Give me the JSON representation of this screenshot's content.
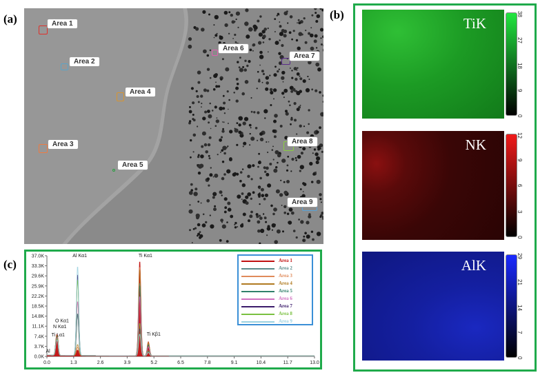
{
  "panels": {
    "a": "(a)",
    "b": "(b)",
    "c": "(c)"
  },
  "sem_areas": [
    {
      "label": "Area 1",
      "color": "#e0302a"
    },
    {
      "label": "Area 2",
      "color": "#5aa4c8"
    },
    {
      "label": "Area 3",
      "color": "#f07a40"
    },
    {
      "label": "Area 4",
      "color": "#d89530"
    },
    {
      "label": "Area 5",
      "color": "#28a040"
    },
    {
      "label": "Area 6",
      "color": "#e060b0"
    },
    {
      "label": "Area 7",
      "color": "#5a2a8a"
    },
    {
      "label": "Area 8",
      "color": "#8ad040"
    },
    {
      "label": "Area 9",
      "color": "#5aa4d8"
    }
  ],
  "maps": [
    {
      "label": "TiK",
      "ticks": [
        "38",
        "27",
        "18",
        "9",
        "0"
      ],
      "color": "#22e640"
    },
    {
      "label": "NK",
      "ticks": [
        "12",
        "9",
        "6",
        "3",
        "0"
      ],
      "color": "#f01a1a"
    },
    {
      "label": "AlK",
      "ticks": [
        "29",
        "21",
        "14",
        "7",
        "0"
      ],
      "color": "#1a2aff"
    }
  ],
  "chart_data": {
    "type": "line",
    "title": "",
    "xlabel": "",
    "ylabel": "",
    "xlim": [
      0.0,
      13.0
    ],
    "ylim": [
      0,
      37000
    ],
    "x_ticks": [
      "0.0",
      "1.3",
      "2.6",
      "3.9",
      "5.2",
      "6.5",
      "7.8",
      "9.1",
      "10.4",
      "11.7",
      "13.0"
    ],
    "y_ticks": [
      "0.0K",
      "3.7K",
      "7.4K",
      "11.1K",
      "14.8K",
      "18.5K",
      "22.2K",
      "25.9K",
      "29.6K",
      "33.3K",
      "37.0K"
    ],
    "peaks": [
      {
        "label": "Al Kα1",
        "x": 1.49
      },
      {
        "label": "Ti Kα1",
        "x": 4.51
      },
      {
        "label": "Ti Kβ1",
        "x": 4.93
      },
      {
        "label": "O Kα1",
        "x": 0.52
      },
      {
        "label": "N Kα1",
        "x": 0.39
      },
      {
        "label": "Ti Lα1",
        "x": 0.45
      },
      {
        "label": "Al",
        "x": 0.1
      }
    ],
    "series": [
      {
        "name": "Area 1",
        "color": "#c01010",
        "peaks": {
          "0.45": 5200,
          "0.52": 6000,
          "1.49": 2000,
          "4.51": 35000,
          "4.93": 5200
        }
      },
      {
        "name": "Area 2",
        "color": "#5a8a8a",
        "peaks": {
          "0.45": 4800,
          "0.52": 5400,
          "1.49": 15000,
          "4.51": 27000,
          "4.93": 4200
        }
      },
      {
        "name": "Area 3",
        "color": "#e08a5a",
        "peaks": {
          "0.45": 5000,
          "0.52": 5800,
          "1.49": 3000,
          "4.51": 33000,
          "4.93": 5000
        }
      },
      {
        "name": "Area 4",
        "color": "#b07a20",
        "peaks": {
          "0.45": 5000,
          "0.52": 5600,
          "1.49": 4000,
          "4.51": 32000,
          "4.93": 4900
        }
      },
      {
        "name": "Area 5",
        "color": "#30806a",
        "peaks": {
          "0.45": 4600,
          "0.52": 5200,
          "1.49": 15500,
          "4.51": 26000,
          "4.93": 4000
        }
      },
      {
        "name": "Area 6",
        "color": "#d070c0",
        "peaks": {
          "0.45": 4400,
          "0.52": 5000,
          "1.49": 20000,
          "4.51": 22000,
          "4.93": 3400
        }
      },
      {
        "name": "Area 7",
        "color": "#3a1a6a",
        "peaks": {
          "0.45": 3800,
          "0.52": 4600,
          "1.49": 30000,
          "4.51": 10000,
          "4.93": 1500
        }
      },
      {
        "name": "Area 8",
        "color": "#7ac040",
        "peaks": {
          "0.45": 4000,
          "0.52": 4800,
          "1.49": 28000,
          "4.51": 12000,
          "4.93": 1800
        }
      },
      {
        "name": "Area 9",
        "color": "#9ad0e0",
        "peaks": {
          "0.45": 3600,
          "0.52": 4500,
          "1.49": 33000,
          "4.51": 8000,
          "4.93": 1200
        }
      }
    ]
  }
}
